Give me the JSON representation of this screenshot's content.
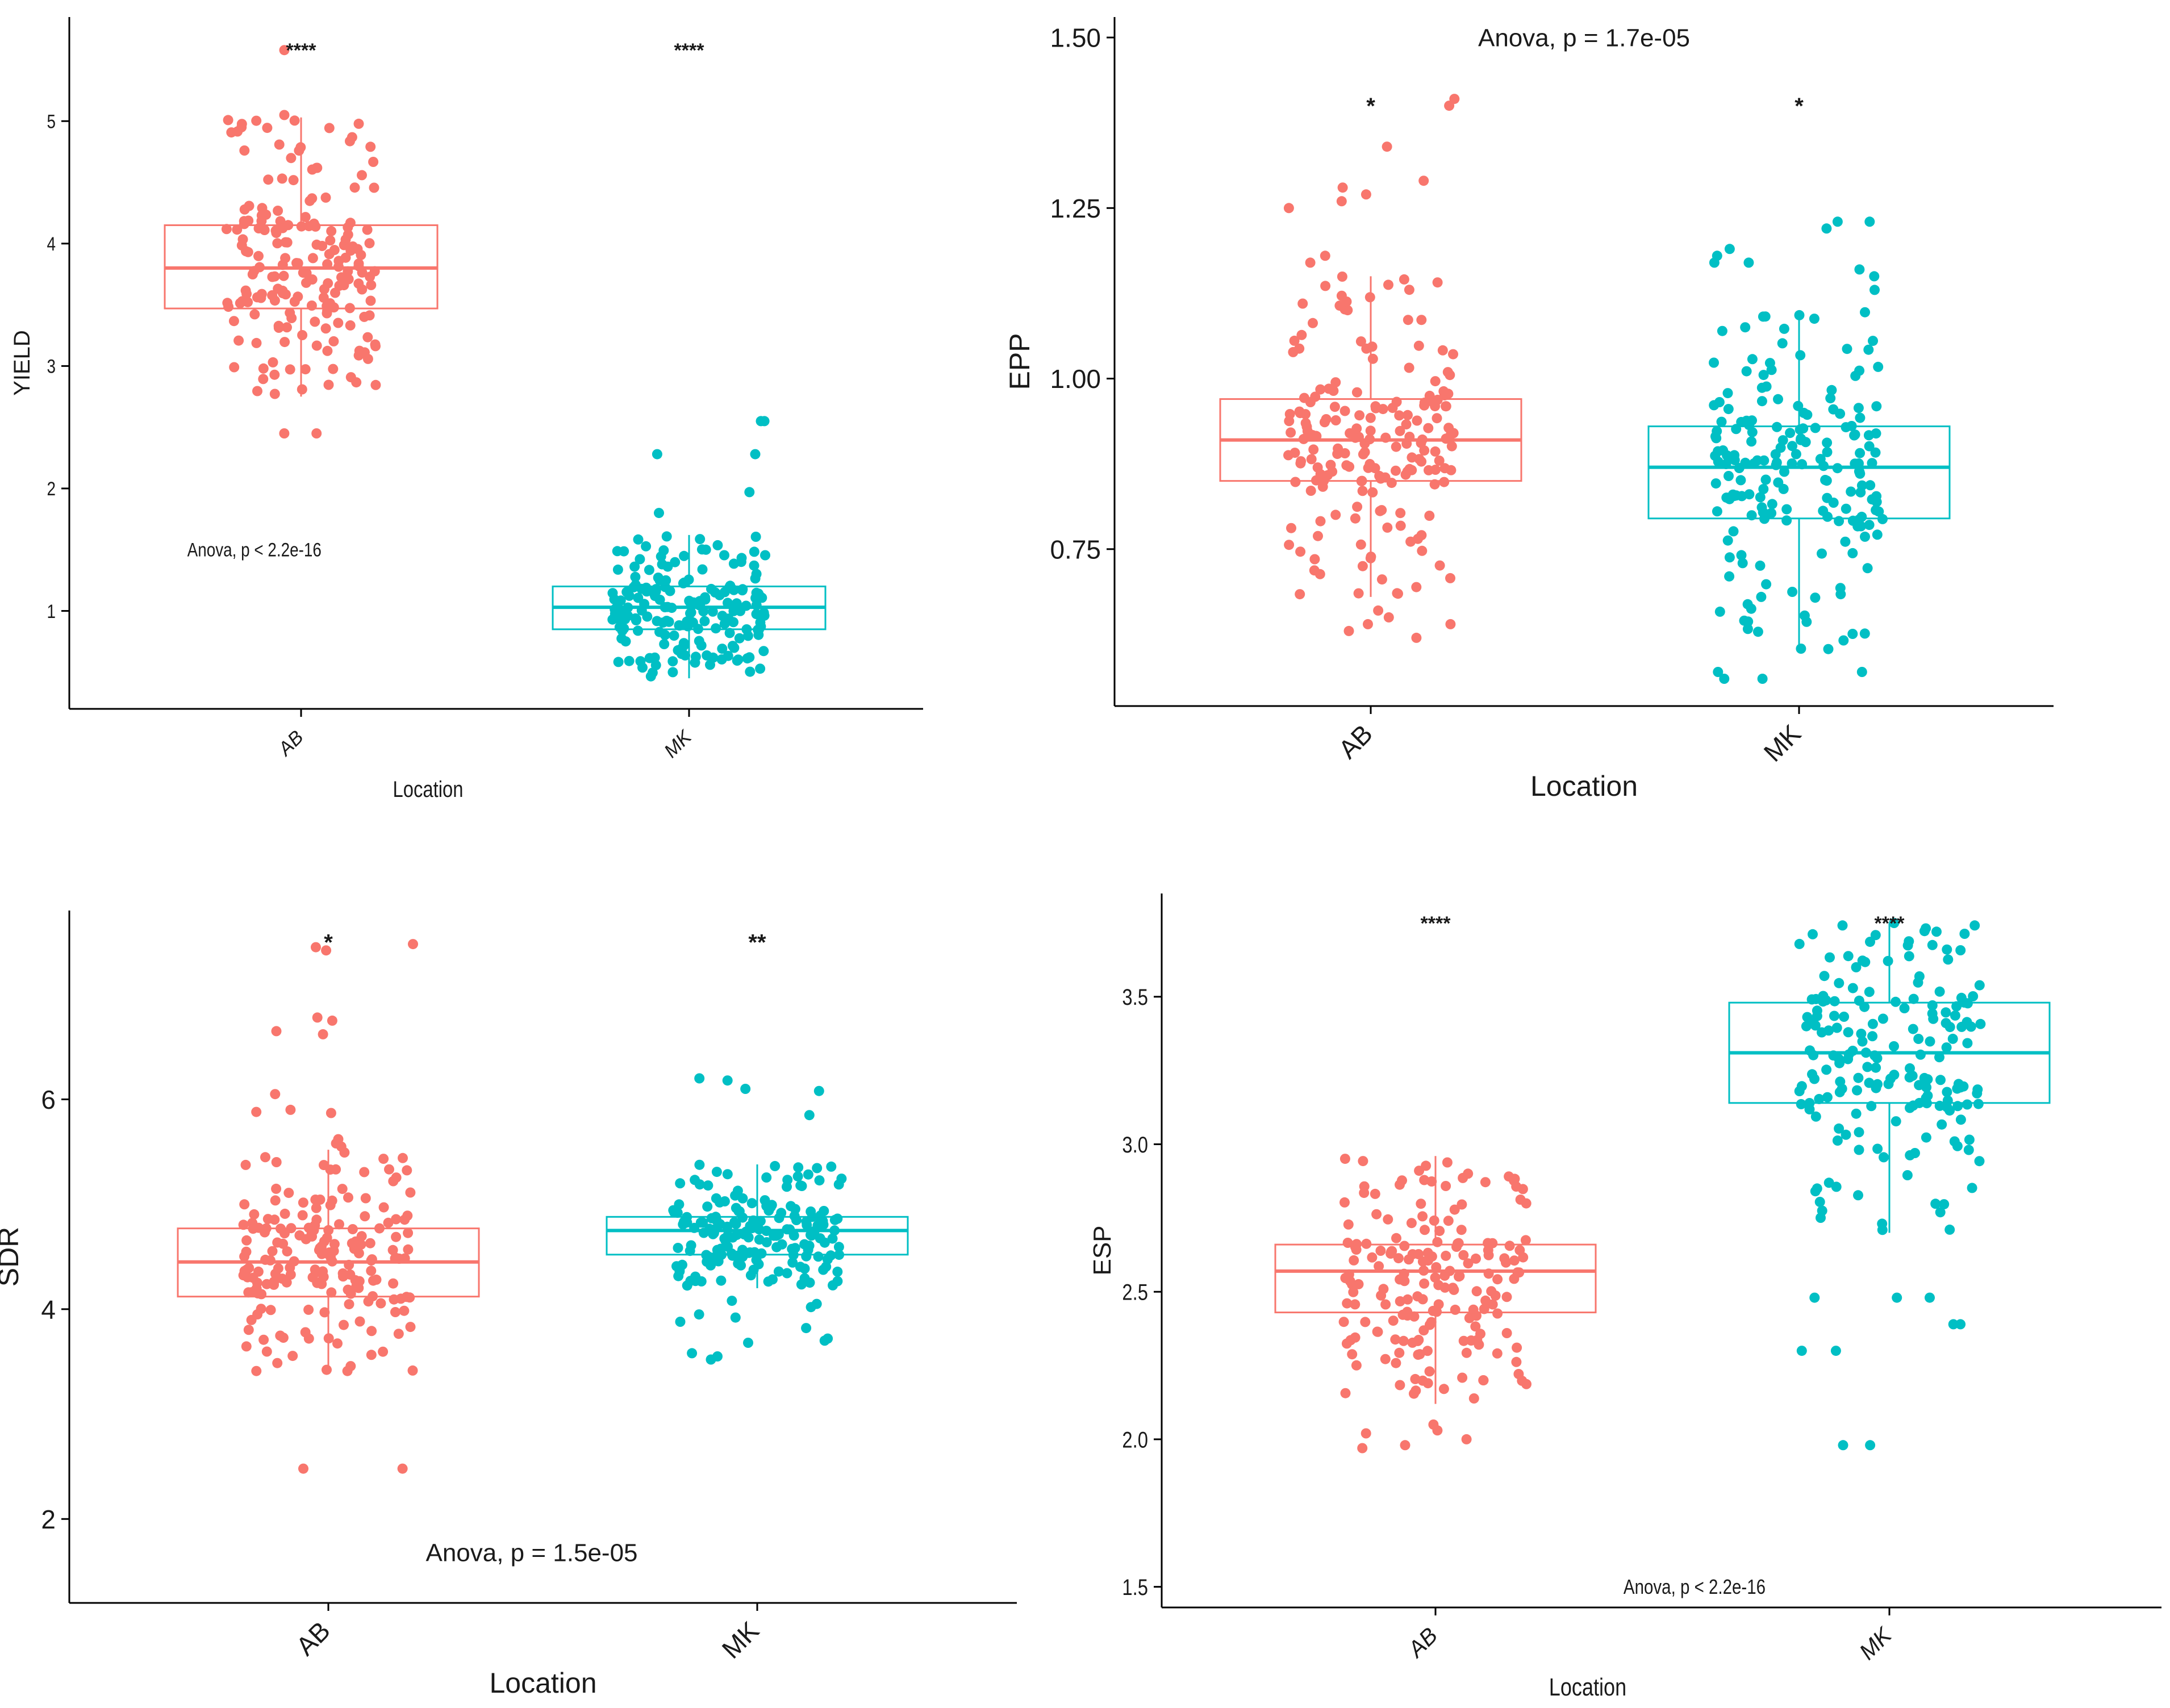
{
  "colors": {
    "AB": "#F8766D",
    "MK": "#00BFC4",
    "axis": "#000000",
    "text": "#1a1a1a"
  },
  "chart_data": [
    {
      "type": "box",
      "id": "yield",
      "ylabel": "YIELD",
      "xlabel": "Location",
      "ylim": [
        0.2,
        5.85
      ],
      "yticks": [
        1,
        2,
        3,
        4,
        5
      ],
      "ytick_labels": [
        "1",
        "2",
        "3",
        "4",
        "5"
      ],
      "categories": [
        "AB",
        "MK"
      ],
      "anova_text": "Anova, p < 2.2e-16",
      "anova_pos": {
        "x": 0.5,
        "y": 1.5
      },
      "groups": [
        {
          "name": "AB",
          "n": 185,
          "q1": 3.47,
          "median": 3.8,
          "q3": 4.15,
          "whisker_low": 2.75,
          "whisker_high": 5.03,
          "sig_label": "****",
          "outliers": [
            2.45,
            2.45,
            5.58,
            5.05
          ]
        },
        {
          "name": "MK",
          "n": 185,
          "q1": 0.85,
          "median": 1.03,
          "q3": 1.2,
          "whisker_low": 0.45,
          "whisker_high": 1.62,
          "sig_label": "****",
          "outliers": [
            1.97,
            1.8,
            2.28,
            2.28,
            2.55,
            2.55
          ]
        }
      ],
      "sig_y": 5.58
    },
    {
      "type": "box",
      "id": "epp",
      "ylabel": "EPP",
      "xlabel": "Location",
      "ylim": [
        0.52,
        1.53
      ],
      "yticks": [
        0.75,
        1.0,
        1.25,
        1.5
      ],
      "ytick_labels": [
        "0.75",
        "1.00",
        "1.25",
        "1.50"
      ],
      "categories": [
        "AB",
        "MK"
      ],
      "anova_text": "Anova, p = 1.7e-05",
      "anova_pos": {
        "x": 1.0,
        "y": 1.5
      },
      "groups": [
        {
          "name": "AB",
          "n": 185,
          "q1": 0.85,
          "median": 0.91,
          "q3": 0.97,
          "whisker_low": 0.68,
          "whisker_high": 1.15,
          "sig_label": "*",
          "outliers": [
            0.62,
            0.63,
            0.64,
            0.64,
            0.65,
            0.66,
            1.17,
            1.18,
            1.25,
            1.26,
            1.27,
            1.28,
            1.29,
            1.34,
            1.4,
            1.41
          ]
        },
        {
          "name": "MK",
          "n": 185,
          "q1": 0.795,
          "median": 0.87,
          "q3": 0.93,
          "whisker_low": 0.6,
          "whisker_high": 1.1,
          "sig_label": "*",
          "outliers": [
            0.56,
            0.56,
            0.57,
            0.57,
            1.13,
            1.15,
            1.16,
            1.17,
            1.17,
            1.18,
            1.19,
            1.22,
            1.23,
            1.23
          ]
        }
      ],
      "sig_y": 1.4
    },
    {
      "type": "box",
      "id": "sdr",
      "ylabel": "SDR",
      "xlabel": "Location",
      "ylim": [
        1.2,
        7.8
      ],
      "yticks": [
        2,
        4,
        6
      ],
      "ytick_labels": [
        "2",
        "4",
        "6"
      ],
      "categories": [
        "AB",
        "MK"
      ],
      "anova_text": "Anova, p = 1.5e-05",
      "anova_pos": {
        "x": 1.0,
        "y": 1.68
      },
      "groups": [
        {
          "name": "AB",
          "n": 185,
          "q1": 4.12,
          "median": 4.45,
          "q3": 4.77,
          "whisker_low": 3.38,
          "whisker_high": 5.52,
          "sig_label": "*",
          "outliers": [
            2.48,
            2.48,
            5.55,
            5.58,
            5.62,
            5.87,
            5.88,
            5.9,
            6.05,
            6.62,
            6.65,
            6.75,
            6.78,
            7.42,
            7.45,
            7.48
          ]
        },
        {
          "name": "MK",
          "n": 185,
          "q1": 4.52,
          "median": 4.75,
          "q3": 4.88,
          "whisker_low": 4.2,
          "whisker_high": 5.38,
          "sig_label": "**",
          "outliers": [
            3.52,
            3.55,
            3.58,
            3.68,
            3.7,
            3.72,
            3.82,
            3.88,
            3.92,
            3.95,
            4.02,
            4.05,
            4.08,
            5.85,
            6.08,
            6.1,
            6.18,
            6.2
          ]
        }
      ],
      "sig_y": 7.5
    },
    {
      "type": "box",
      "id": "esp",
      "ylabel": "ESP",
      "xlabel": "Location",
      "ylim": [
        1.43,
        3.85
      ],
      "yticks": [
        1.5,
        2.0,
        2.5,
        3.0,
        3.5
      ],
      "ytick_labels": [
        "1.5",
        "2.0",
        "2.5",
        "3.0",
        "3.5"
      ],
      "categories": [
        "AB",
        "MK"
      ],
      "anova_text": "Anova, p < 2.2e-16",
      "anova_pos": {
        "x": 1.1,
        "y": 1.5
      },
      "groups": [
        {
          "name": "AB",
          "n": 185,
          "q1": 2.43,
          "median": 2.57,
          "q3": 2.66,
          "whisker_low": 2.12,
          "whisker_high": 2.96,
          "sig_label": "****",
          "outliers": [
            1.97,
            1.98,
            2.0,
            2.02,
            2.03,
            2.05
          ]
        },
        {
          "name": "MK",
          "n": 185,
          "q1": 3.14,
          "median": 3.31,
          "q3": 3.48,
          "whisker_low": 2.7,
          "whisker_high": 3.75,
          "sig_label": "****",
          "outliers": [
            1.98,
            1.98,
            2.3,
            2.3,
            2.39,
            2.39,
            2.48,
            2.48,
            2.48
          ]
        }
      ],
      "sig_y": 3.75
    }
  ]
}
